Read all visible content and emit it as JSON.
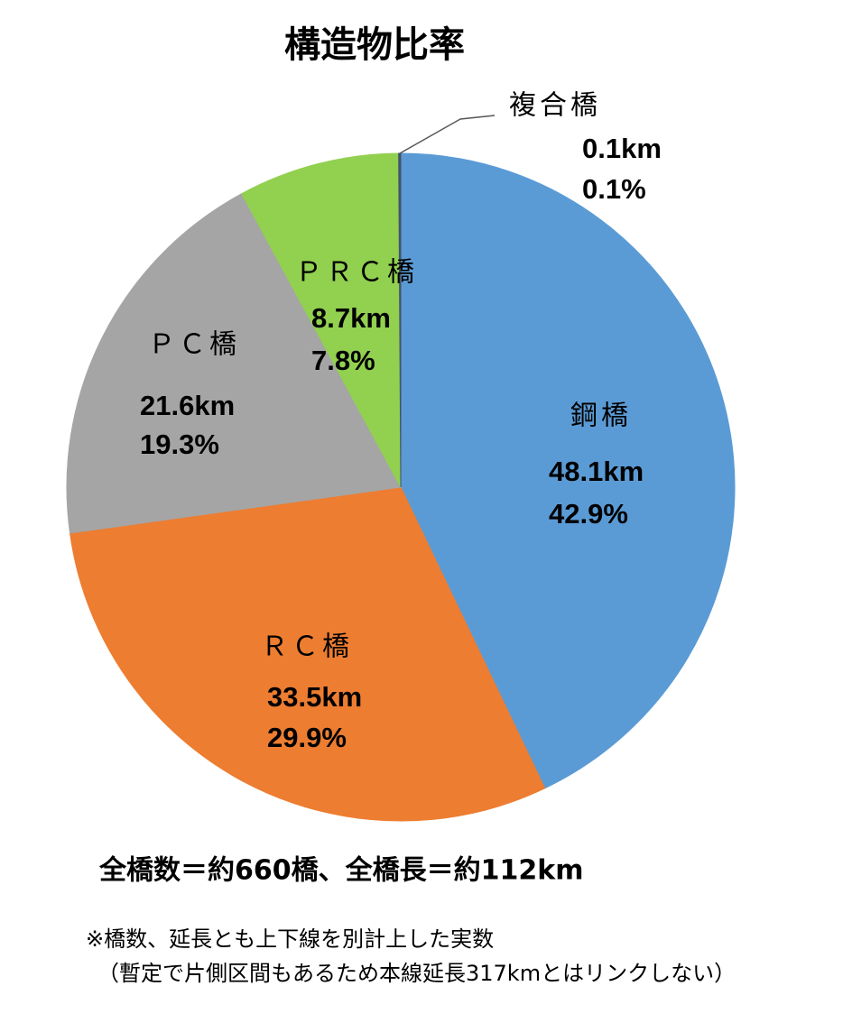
{
  "chart_data": {
    "type": "pie",
    "title": "構造物比率",
    "categories": [
      "鋼橋",
      "ＲＣ橋",
      "ＰＣ橋",
      "ＰＲＣ橋",
      "複合橋"
    ],
    "values": [
      42.9,
      29.9,
      19.3,
      7.8,
      0.1
    ],
    "value_labels": [
      "42.9%",
      "29.9%",
      "19.3%",
      "7.8%",
      "0.1%"
    ],
    "lengths": [
      48.1,
      33.5,
      21.6,
      8.7,
      0.1
    ],
    "length_labels": [
      "48.1km",
      "33.5km",
      "21.6km",
      "8.7km",
      "0.1km"
    ],
    "colors": [
      "#5b9bd5",
      "#ed7d31",
      "#a5a5a5",
      "#92d050",
      "#44546a"
    ],
    "summary": "全橋数＝約660橋、全橋長＝約112km",
    "notes": [
      "※橋数、延長とも上下線を別計上した実数",
      "（暫定で片側区間もあるため本線延長317kmとはリンクしない）"
    ]
  }
}
